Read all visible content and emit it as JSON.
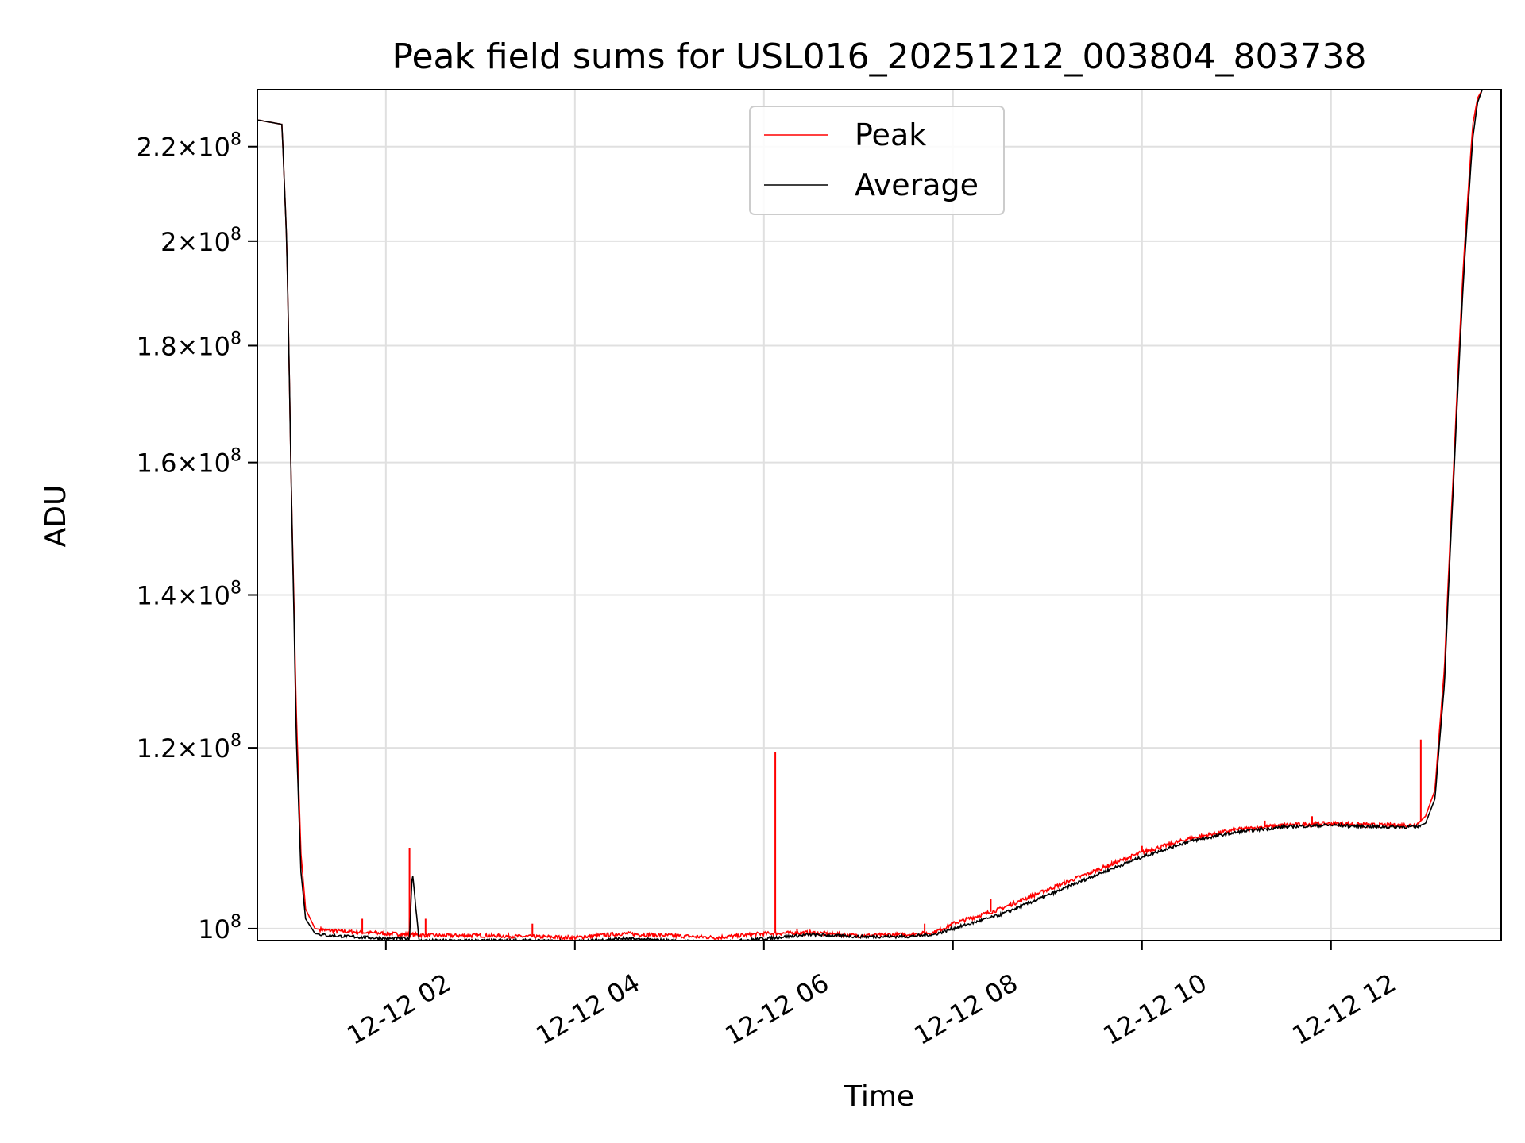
{
  "chart_data": {
    "type": "line",
    "title": "Peak field sums for USL016_20251212_003804_803738",
    "xlabel": "Time",
    "ylabel": "ADU",
    "y_scale": "log",
    "x_unit": "hours since 2025-12-12 00:00",
    "xlim": [
      0.64,
      13.8
    ],
    "ylim": [
      98800000.0,
      233000000.0
    ],
    "grid": true,
    "legend": {
      "placement": "top-center"
    },
    "x_ticks": [
      {
        "value": 2,
        "label": "12-12 02"
      },
      {
        "value": 4,
        "label": "12-12 04"
      },
      {
        "value": 6,
        "label": "12-12 06"
      },
      {
        "value": 8,
        "label": "12-12 08"
      },
      {
        "value": 10,
        "label": "12-12 10"
      },
      {
        "value": 12,
        "label": "12-12 12"
      }
    ],
    "y_ticks": [
      {
        "value": 100000000.0,
        "mantissa": "",
        "exponent": "8"
      },
      {
        "value": 120000000.0,
        "mantissa": "1.2",
        "exponent": "8"
      },
      {
        "value": 140000000.0,
        "mantissa": "1.4",
        "exponent": "8"
      },
      {
        "value": 160000000.0,
        "mantissa": "1.6",
        "exponent": "8"
      },
      {
        "value": 180000000.0,
        "mantissa": "1.8",
        "exponent": "8"
      },
      {
        "value": 200000000.0,
        "mantissa": "2",
        "exponent": "8"
      },
      {
        "value": 220000000.0,
        "mantissa": "2.2",
        "exponent": "8"
      }
    ],
    "series": [
      {
        "name": "Peak",
        "color": "#ff0000",
        "x": [
          0.64,
          0.9,
          0.95,
          1.0,
          1.05,
          1.1,
          1.15,
          1.25,
          1.4,
          1.6,
          2.0,
          2.5,
          3.0,
          3.5,
          4.0,
          4.5,
          5.0,
          5.5,
          6.0,
          6.5,
          7.0,
          7.5,
          7.8,
          8.0,
          8.5,
          9.0,
          9.5,
          10.0,
          10.5,
          11.0,
          11.5,
          12.0,
          12.5,
          12.9,
          13.0,
          13.1,
          13.2,
          13.3,
          13.4,
          13.5,
          13.55,
          13.6
        ],
        "y": [
          226000000.0,
          225000000.0,
          200000000.0,
          155000000.0,
          125000000.0,
          108000000.0,
          102000000.0,
          100000000.0,
          99800000.0,
          99700000.0,
          99500000.0,
          99300000.0,
          99300000.0,
          99200000.0,
          99100000.0,
          99500000.0,
          99300000.0,
          99100000.0,
          99500000.0,
          99600000.0,
          99300000.0,
          99400000.0,
          99600000.0,
          100500000.0,
          102000000.0,
          104000000.0,
          106000000.0,
          108000000.0,
          109500000.0,
          110500000.0,
          111000000.0,
          111200000.0,
          111000000.0,
          111000000.0,
          112000000.0,
          115000000.0,
          130000000.0,
          160000000.0,
          195000000.0,
          225000000.0,
          231000000.0,
          233000000.0
        ],
        "spikes": [
          {
            "x": 1.75,
            "y": 101000000.0
          },
          {
            "x": 2.25,
            "y": 108500000.0
          },
          {
            "x": 2.42,
            "y": 101000000.0
          },
          {
            "x": 3.55,
            "y": 100500000.0
          },
          {
            "x": 6.12,
            "y": 119500000.0
          },
          {
            "x": 6.35,
            "y": 100000000.0
          },
          {
            "x": 7.7,
            "y": 100500000.0
          },
          {
            "x": 8.4,
            "y": 103000000.0
          },
          {
            "x": 9.7,
            "y": 107000000.0
          },
          {
            "x": 10.0,
            "y": 108700000.0
          },
          {
            "x": 10.8,
            "y": 110000000.0
          },
          {
            "x": 11.3,
            "y": 111500000.0
          },
          {
            "x": 11.8,
            "y": 112000000.0
          },
          {
            "x": 12.95,
            "y": 121000000.0
          }
        ]
      },
      {
        "name": "Average",
        "color": "#000000",
        "x": [
          0.64,
          0.9,
          0.95,
          1.0,
          1.05,
          1.1,
          1.15,
          1.25,
          1.4,
          1.6,
          2.0,
          2.25,
          2.28,
          2.35,
          2.5,
          3.0,
          3.5,
          4.0,
          4.5,
          5.0,
          5.5,
          6.0,
          6.5,
          7.0,
          7.5,
          7.8,
          8.0,
          8.5,
          9.0,
          9.5,
          10.0,
          10.5,
          11.0,
          11.5,
          12.0,
          12.5,
          12.9,
          13.0,
          13.1,
          13.2,
          13.3,
          13.4,
          13.5,
          13.55,
          13.6
        ],
        "y": [
          226000000.0,
          225000000.0,
          200000000.0,
          155000000.0,
          122000000.0,
          106000000.0,
          101000000.0,
          99500000.0,
          99300000.0,
          99200000.0,
          99000000.0,
          99000000.0,
          106000000.0,
          98800000.0,
          98800000.0,
          98800000.0,
          98800000.0,
          98700000.0,
          99000000.0,
          98800000.0,
          98600000.0,
          99000000.0,
          99400000.0,
          99200000.0,
          99200000.0,
          99400000.0,
          100000000.0,
          101400000.0,
          103400000.0,
          105500000.0,
          107500000.0,
          109200000.0,
          110200000.0,
          110800000.0,
          111000000.0,
          110800000.0,
          110800000.0,
          111200000.0,
          114000000.0,
          128000000.0,
          158000000.0,
          192000000.0,
          222000000.0,
          230000000.0,
          233000000.0
        ]
      }
    ]
  }
}
